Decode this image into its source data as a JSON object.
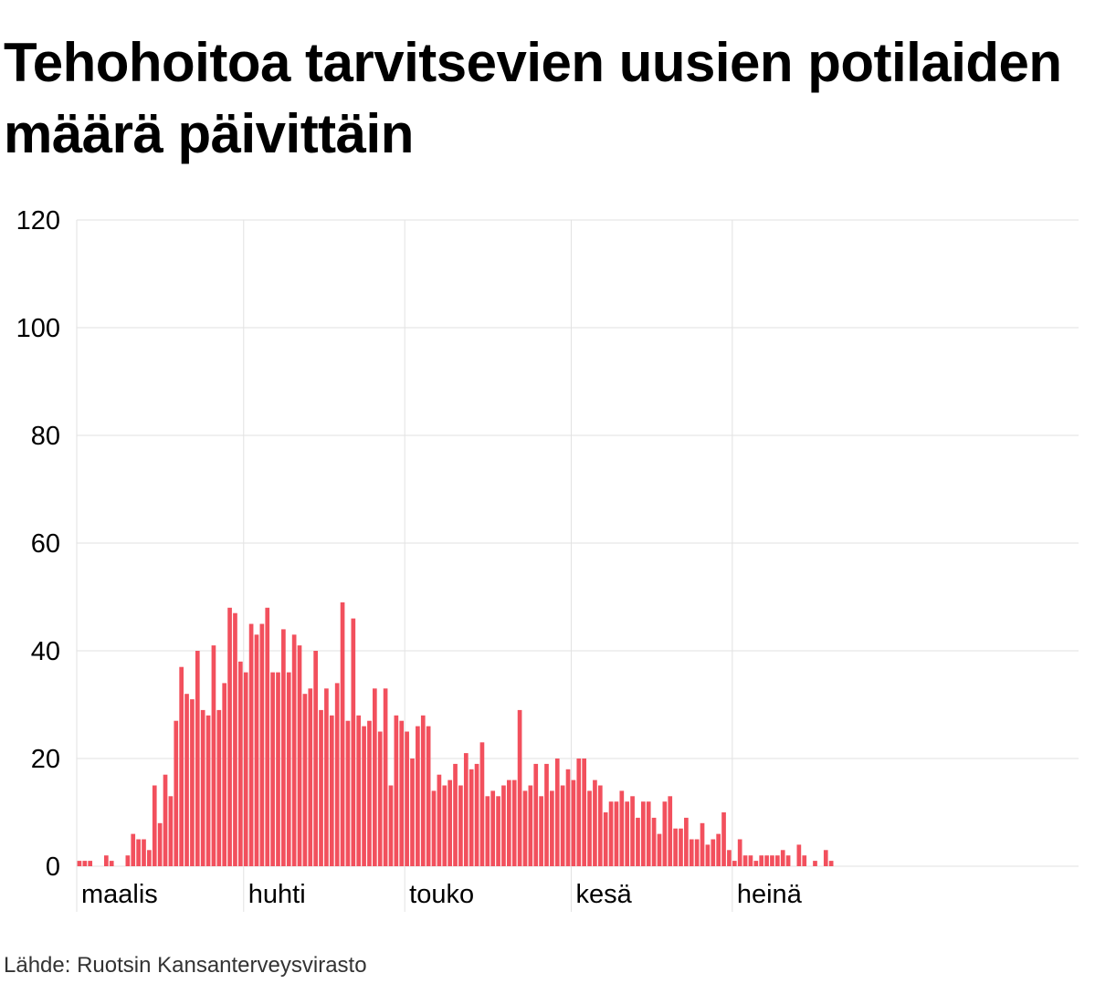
{
  "chart_data": {
    "type": "bar",
    "title": "Tehohoitoa tarvitsevien uusien potilaiden määrä päivittäin",
    "source": "Lähde: Ruotsin Kansanterveysvirasto",
    "color": "#f2505d",
    "ylim": [
      0,
      120
    ],
    "yticks": [
      0,
      20,
      40,
      60,
      80,
      100,
      120
    ],
    "grid": true,
    "x_start": "2020-03-01",
    "x_month_labels": [
      {
        "label": "maalis",
        "day": 0
      },
      {
        "label": "huhti",
        "day": 31
      },
      {
        "label": "touko",
        "day": 61
      },
      {
        "label": "kesä",
        "day": 92
      },
      {
        "label": "heinä",
        "day": 122
      }
    ],
    "values": [
      1,
      1,
      1,
      0,
      0,
      2,
      1,
      0,
      0,
      2,
      6,
      5,
      5,
      3,
      15,
      8,
      17,
      13,
      27,
      37,
      32,
      31,
      40,
      29,
      28,
      41,
      29,
      34,
      48,
      47,
      38,
      36,
      45,
      43,
      45,
      48,
      36,
      36,
      44,
      36,
      43,
      41,
      32,
      33,
      40,
      29,
      33,
      28,
      34,
      49,
      27,
      46,
      28,
      26,
      27,
      33,
      25,
      33,
      15,
      28,
      27,
      25,
      20,
      26,
      28,
      26,
      14,
      17,
      15,
      16,
      19,
      15,
      21,
      18,
      19,
      23,
      13,
      14,
      13,
      15,
      16,
      16,
      29,
      14,
      15,
      19,
      13,
      19,
      14,
      20,
      15,
      18,
      16,
      20,
      20,
      14,
      16,
      15,
      10,
      12,
      12,
      14,
      12,
      13,
      9,
      12,
      12,
      9,
      6,
      12,
      13,
      7,
      7,
      9,
      5,
      5,
      8,
      4,
      5,
      6,
      10,
      3,
      1,
      5,
      2,
      2,
      1,
      2,
      2,
      2,
      2,
      3,
      2,
      0,
      4,
      2,
      0,
      1,
      0,
      3,
      1
    ]
  }
}
